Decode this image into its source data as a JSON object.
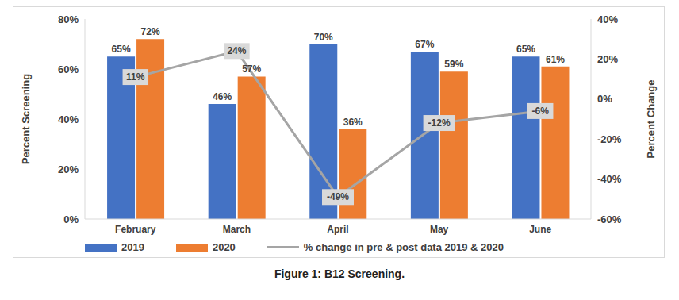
{
  "chart_data": {
    "type": "bar",
    "title": "Figure 1: B12 Screening.",
    "y_label": "Percent Screening",
    "y2_label": "Percent Change",
    "categories": [
      "February",
      "March",
      "April",
      "May",
      "June"
    ],
    "series": [
      {
        "name": "2019",
        "type": "bar",
        "color": "#4472c4",
        "values": [
          65,
          46,
          70,
          67,
          65
        ],
        "value_labels": [
          "65%",
          "46%",
          "70%",
          "67%",
          "65%"
        ]
      },
      {
        "name": "2020",
        "type": "bar",
        "color": "#ed7d31",
        "values": [
          72,
          57,
          36,
          59,
          61
        ],
        "value_labels": [
          "72%",
          "57%",
          "36%",
          "59%",
          "61%"
        ]
      },
      {
        "name": "% change in pre & post data 2019 & 2020",
        "type": "line",
        "axis": "y2",
        "color": "#a5a5a5",
        "values": [
          11,
          24,
          -49,
          -12,
          -6
        ],
        "value_labels": [
          "11%",
          "24%",
          "-49%",
          "-12%",
          "-6%"
        ]
      }
    ],
    "ylim": [
      0,
      80
    ],
    "yticks": [
      {
        "value": 0,
        "label": "0%"
      },
      {
        "value": 20,
        "label": "20%"
      },
      {
        "value": 40,
        "label": "40%"
      },
      {
        "value": 60,
        "label": "60%"
      },
      {
        "value": 80,
        "label": "80%"
      }
    ],
    "y2lim": [
      -60,
      40
    ],
    "y2ticks": [
      {
        "value": -60,
        "label": "-60%"
      },
      {
        "value": -40,
        "label": "-40%"
      },
      {
        "value": -20,
        "label": "-20%"
      },
      {
        "value": 0,
        "label": "0%"
      },
      {
        "value": 20,
        "label": "20%"
      },
      {
        "value": 40,
        "label": "40%"
      }
    ],
    "data_labels": true,
    "legend": "bottom",
    "grid": false
  }
}
